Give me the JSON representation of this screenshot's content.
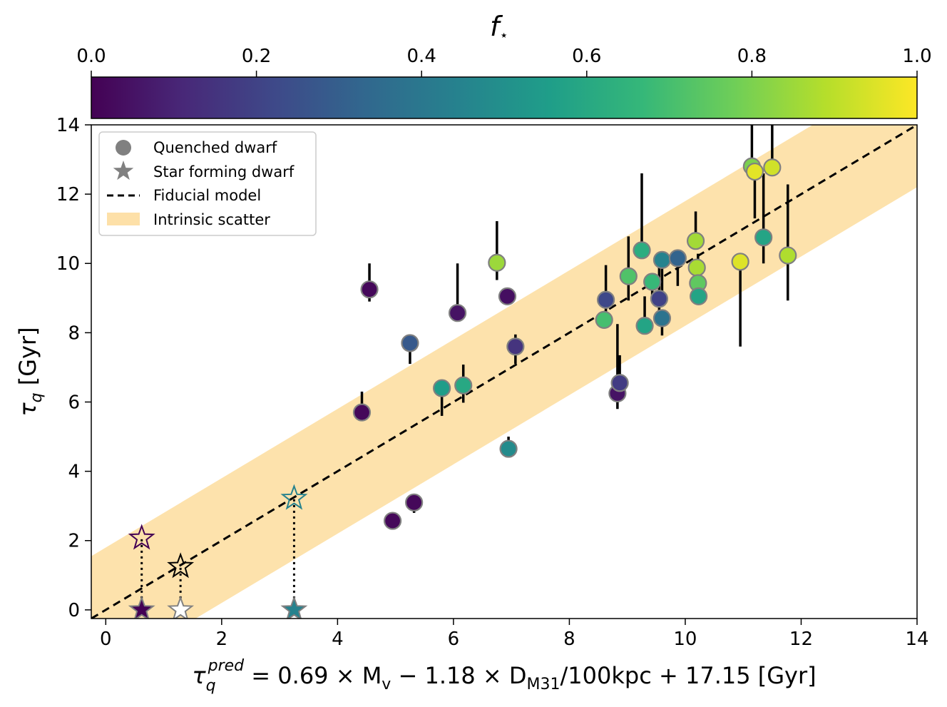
{
  "chart_data": {
    "type": "scatter",
    "title": "",
    "colorbar": {
      "label": "f",
      "label_subscript": "⋆",
      "range": [
        0.0,
        1.0
      ],
      "colormap": "viridis",
      "ticks": [
        "0.0",
        "0.2",
        "0.4",
        "0.6",
        "0.8",
        "1.0"
      ],
      "stops": [
        "#440154",
        "#482878",
        "#3e4989",
        "#31688e",
        "#26828e",
        "#1f9e89",
        "#35b779",
        "#6ece58",
        "#b5de2b",
        "#fde725"
      ]
    },
    "xlabel": {
      "tau": "τ",
      "sub": "q",
      "sup": "pred",
      "rest": " = 0.69 × M",
      "mv_sub": "v",
      "mid": " − 1.18 × D",
      "d_sub": "M31",
      "tail": "/100kpc + 17.15 [Gyr]"
    },
    "ylabel": {
      "tau": "τ",
      "sub": "q",
      "unit": " [Gyr]"
    },
    "xlim": [
      -0.25,
      14
    ],
    "ylim": [
      -0.25,
      14
    ],
    "xticks": [
      0,
      2,
      4,
      6,
      8,
      10,
      12,
      14
    ],
    "yticks": [
      0,
      2,
      4,
      6,
      8,
      10,
      12,
      14
    ],
    "grid": false,
    "legend": {
      "placement": "top-left",
      "entries": [
        "Quenched dwarf",
        "Star forming dwarf",
        "Fiducial model",
        "Intrinsic scatter"
      ]
    },
    "fiducial_model": {
      "slope": 1,
      "intercept": 0,
      "scatter": 1.8,
      "line_color": "#000000",
      "band_color": "#fde0a8"
    },
    "series": [
      {
        "name": "Quenched dwarf",
        "marker": "circle",
        "points": [
          {
            "x": 4.55,
            "y": 9.25,
            "f": 0.02,
            "err_lo": 0.35,
            "err_hi": 0.75
          },
          {
            "x": 4.42,
            "y": 5.7,
            "f": 0.02,
            "err_lo": 0.0,
            "err_hi": 0.6
          },
          {
            "x": 4.95,
            "y": 2.57,
            "f": 0.02,
            "err_lo": 0.0,
            "err_hi": 0.0
          },
          {
            "x": 5.32,
            "y": 3.1,
            "f": 0.02,
            "err_lo": 0.3,
            "err_hi": 0.0
          },
          {
            "x": 5.25,
            "y": 7.7,
            "f": 0.28,
            "err_lo": 0.6,
            "err_hi": 0.0
          },
          {
            "x": 5.8,
            "y": 6.4,
            "f": 0.55,
            "err_lo": 0.8,
            "err_hi": 0.0
          },
          {
            "x": 6.07,
            "y": 8.57,
            "f": 0.05,
            "err_lo": 0.0,
            "err_hi": 1.43
          },
          {
            "x": 6.17,
            "y": 6.48,
            "f": 0.6,
            "err_lo": 0.5,
            "err_hi": 0.6
          },
          {
            "x": 6.75,
            "y": 10.02,
            "f": 0.85,
            "err_lo": 0.5,
            "err_hi": 1.2
          },
          {
            "x": 6.93,
            "y": 9.05,
            "f": 0.04,
            "err_lo": 0.0,
            "err_hi": 0.0
          },
          {
            "x": 6.95,
            "y": 4.65,
            "f": 0.48,
            "err_lo": 0.0,
            "err_hi": 0.35
          },
          {
            "x": 7.07,
            "y": 7.6,
            "f": 0.15,
            "err_lo": 0.5,
            "err_hi": 0.35
          },
          {
            "x": 8.63,
            "y": 8.95,
            "f": 0.22,
            "err_lo": 0.55,
            "err_hi": 1.0
          },
          {
            "x": 8.6,
            "y": 8.37,
            "f": 0.7,
            "err_lo": 0.0,
            "err_hi": 0.0
          },
          {
            "x": 8.83,
            "y": 6.25,
            "f": 0.05,
            "err_lo": 0.45,
            "err_hi": 2.0
          },
          {
            "x": 8.87,
            "y": 6.55,
            "f": 0.18,
            "err_lo": 0.0,
            "err_hi": 0.8
          },
          {
            "x": 9.02,
            "y": 9.63,
            "f": 0.72,
            "err_lo": 0.7,
            "err_hi": 1.15
          },
          {
            "x": 9.25,
            "y": 10.38,
            "f": 0.62,
            "err_lo": 0.0,
            "err_hi": 2.22
          },
          {
            "x": 9.3,
            "y": 8.2,
            "f": 0.58,
            "err_lo": 0.0,
            "err_hi": 0.85
          },
          {
            "x": 9.43,
            "y": 9.47,
            "f": 0.67,
            "err_lo": 0.55,
            "err_hi": 0.0
          },
          {
            "x": 9.55,
            "y": 8.98,
            "f": 0.2,
            "err_lo": 0.7,
            "err_hi": 1.1
          },
          {
            "x": 9.6,
            "y": 8.42,
            "f": 0.38,
            "err_lo": 0.5,
            "err_hi": 0.0
          },
          {
            "x": 9.6,
            "y": 10.1,
            "f": 0.45,
            "err_lo": 1.3,
            "err_hi": 0.0
          },
          {
            "x": 9.87,
            "y": 10.15,
            "f": 0.32,
            "err_lo": 0.8,
            "err_hi": 0.0
          },
          {
            "x": 10.18,
            "y": 10.65,
            "f": 0.86,
            "err_lo": 0.0,
            "err_hi": 0.85
          },
          {
            "x": 10.2,
            "y": 9.88,
            "f": 0.87,
            "err_lo": 0.0,
            "err_hi": 0.0
          },
          {
            "x": 10.22,
            "y": 9.43,
            "f": 0.75,
            "err_lo": 0.0,
            "err_hi": 0.85
          },
          {
            "x": 10.23,
            "y": 9.05,
            "f": 0.58,
            "err_lo": 0.0,
            "err_hi": 0.0
          },
          {
            "x": 10.95,
            "y": 10.05,
            "f": 0.95,
            "err_lo": 2.45,
            "err_hi": 0.0
          },
          {
            "x": 11.15,
            "y": 12.8,
            "f": 0.8,
            "err_lo": 0.0,
            "err_hi": 1.6
          },
          {
            "x": 11.2,
            "y": 12.65,
            "f": 0.96,
            "err_lo": 1.35,
            "err_hi": 0.0
          },
          {
            "x": 11.35,
            "y": 10.75,
            "f": 0.58,
            "err_lo": 0.75,
            "err_hi": 1.85
          },
          {
            "x": 11.5,
            "y": 12.77,
            "f": 0.93,
            "err_lo": 0.0,
            "err_hi": 1.5
          },
          {
            "x": 11.77,
            "y": 10.23,
            "f": 0.88,
            "err_lo": 1.3,
            "err_hi": 2.05
          }
        ]
      },
      {
        "name": "Star forming dwarf",
        "marker": "star",
        "points": [
          {
            "x": 0.62,
            "y": 0.0,
            "pred_y": 2.07,
            "f": 0.02,
            "color": "#440154"
          },
          {
            "x": 1.29,
            "y": 0.0,
            "pred_y": 1.25,
            "f": null,
            "color": "#ffffff"
          },
          {
            "x": 3.25,
            "y": 0.0,
            "pred_y": 3.22,
            "f": 0.48,
            "color": "#26828e"
          }
        ]
      }
    ]
  }
}
